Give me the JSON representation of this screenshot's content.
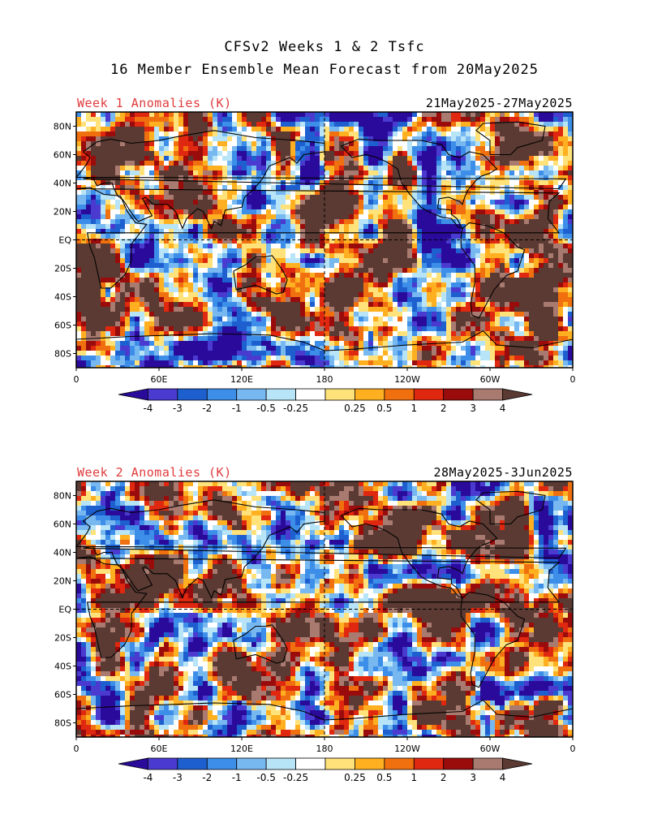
{
  "title": {
    "line1": "CFSv2 Weeks 1 & 2 Tsfc",
    "line2": "16 Member Ensemble Mean Forecast from 20May2025"
  },
  "panels": [
    {
      "label": "Week 1 Anomalies (K)",
      "dates": "21May2025-27May2025"
    },
    {
      "label": "Week 2 Anomalies (K)",
      "dates": "28May2025-3Jun2025"
    }
  ],
  "map": {
    "lat_labels": [
      "80N",
      "60N",
      "40N",
      "20N",
      "EQ",
      "20S",
      "40S",
      "60S",
      "80S"
    ],
    "lon_labels": [
      "0",
      "60E",
      "120E",
      "180",
      "120W",
      "60W",
      "0"
    ],
    "gridlines": [
      "EQ",
      "180"
    ]
  },
  "colorbar": {
    "labels": [
      "-4",
      "-3",
      "-2",
      "-1",
      "-0.5",
      "-0.25",
      "0.25",
      "0.5",
      "1",
      "2",
      "3",
      "4"
    ],
    "colors": [
      "#2a0a9a",
      "#4a3ad0",
      "#1e5fd0",
      "#3c8ee8",
      "#78b8f0",
      "#b8e4f8",
      "#ffffff",
      "#ffe27a",
      "#ffb020",
      "#f07010",
      "#e02810",
      "#9a0c0c",
      "#a87a70",
      "#5a3a32"
    ]
  }
}
